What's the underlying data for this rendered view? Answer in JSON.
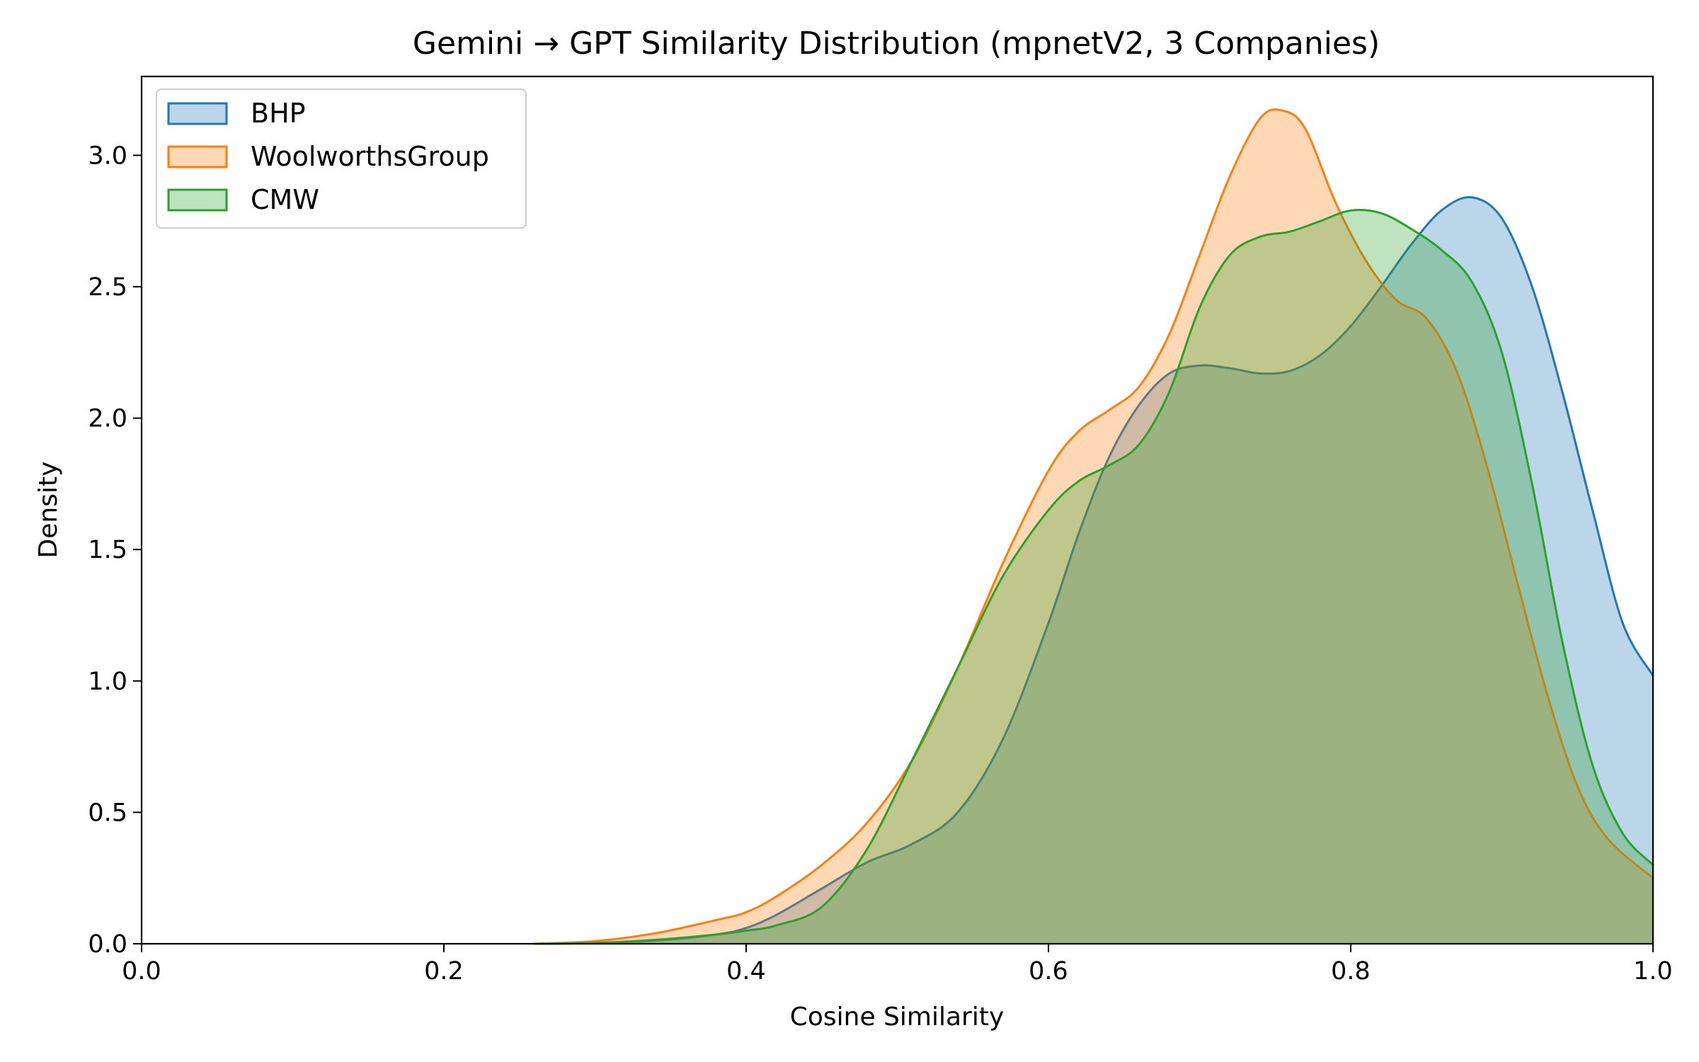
{
  "chart_data": {
    "type": "area",
    "title": "Gemini → GPT Similarity Distribution (mpnetV2, 3 Companies)",
    "xlabel": "Cosine Similarity",
    "ylabel": "Density",
    "xlim": [
      0.0,
      1.0
    ],
    "ylim": [
      0.0,
      3.3
    ],
    "xticks": [
      "0.0",
      "0.2",
      "0.4",
      "0.6",
      "0.8",
      "1.0"
    ],
    "yticks": [
      "0.0",
      "0.5",
      "1.0",
      "1.5",
      "2.0",
      "2.5",
      "3.0"
    ],
    "grid": false,
    "legend_position": "top-left",
    "series": [
      {
        "name": "BHP",
        "color": "#1f77b4",
        "x": [
          0.26,
          0.3,
          0.34,
          0.38,
          0.4,
          0.42,
          0.45,
          0.48,
          0.51,
          0.54,
          0.57,
          0.6,
          0.62,
          0.64,
          0.66,
          0.68,
          0.7,
          0.72,
          0.74,
          0.76,
          0.78,
          0.8,
          0.82,
          0.84,
          0.86,
          0.88,
          0.9,
          0.92,
          0.94,
          0.96,
          0.98,
          1.0
        ],
        "y": [
          0.0,
          0.003,
          0.012,
          0.035,
          0.06,
          0.11,
          0.21,
          0.31,
          0.38,
          0.5,
          0.78,
          1.22,
          1.56,
          1.85,
          2.05,
          2.17,
          2.2,
          2.19,
          2.17,
          2.18,
          2.24,
          2.35,
          2.5,
          2.66,
          2.79,
          2.84,
          2.76,
          2.5,
          2.1,
          1.65,
          1.22,
          1.02
        ]
      },
      {
        "name": "WoolworthsGroup",
        "color": "#ff7f0e",
        "x": [
          0.26,
          0.3,
          0.34,
          0.38,
          0.4,
          0.42,
          0.45,
          0.48,
          0.51,
          0.54,
          0.57,
          0.6,
          0.62,
          0.64,
          0.66,
          0.68,
          0.7,
          0.72,
          0.74,
          0.755,
          0.77,
          0.79,
          0.81,
          0.83,
          0.85,
          0.87,
          0.89,
          0.91,
          0.93,
          0.95,
          0.97,
          1.0
        ],
        "y": [
          0.0,
          0.01,
          0.04,
          0.09,
          0.12,
          0.18,
          0.3,
          0.46,
          0.7,
          1.05,
          1.45,
          1.8,
          1.95,
          2.03,
          2.12,
          2.32,
          2.62,
          2.92,
          3.14,
          3.17,
          3.1,
          2.82,
          2.6,
          2.45,
          2.38,
          2.18,
          1.82,
          1.38,
          0.95,
          0.6,
          0.4,
          0.25
        ]
      },
      {
        "name": "CMW",
        "color": "#2ca02c",
        "x": [
          0.26,
          0.3,
          0.34,
          0.38,
          0.4,
          0.42,
          0.45,
          0.48,
          0.51,
          0.54,
          0.57,
          0.6,
          0.62,
          0.64,
          0.66,
          0.68,
          0.7,
          0.72,
          0.74,
          0.76,
          0.78,
          0.8,
          0.82,
          0.84,
          0.86,
          0.88,
          0.9,
          0.92,
          0.94,
          0.96,
          0.98,
          1.0
        ],
        "y": [
          0.0,
          0.003,
          0.015,
          0.035,
          0.05,
          0.07,
          0.14,
          0.36,
          0.7,
          1.05,
          1.4,
          1.65,
          1.76,
          1.82,
          1.9,
          2.1,
          2.42,
          2.62,
          2.69,
          2.71,
          2.75,
          2.79,
          2.78,
          2.72,
          2.64,
          2.52,
          2.25,
          1.75,
          1.15,
          0.68,
          0.42,
          0.3
        ]
      }
    ]
  }
}
